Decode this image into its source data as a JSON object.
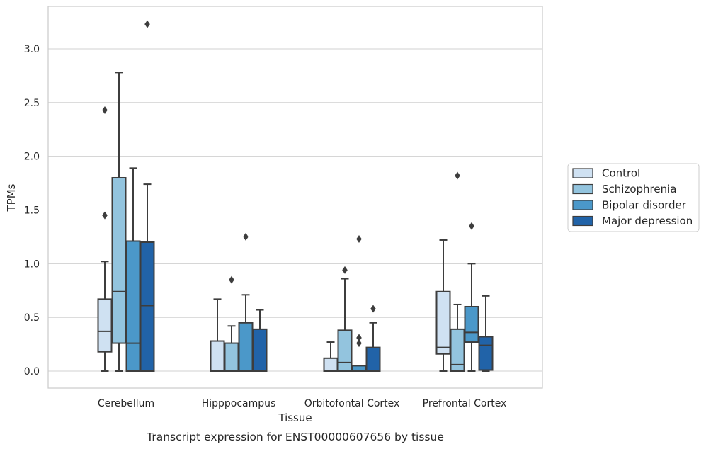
{
  "chart_data": {
    "type": "boxplot",
    "title": "",
    "caption": "Transcript expression for ENST00000607656 by tissue",
    "xlabel": "Tissue",
    "ylabel": "TPMs",
    "ylim": [
      -0.16,
      3.4
    ],
    "yticks": [
      0.0,
      0.5,
      1.0,
      1.5,
      2.0,
      2.5,
      3.0
    ],
    "ytick_labels": [
      "0.0",
      "0.5",
      "1.0",
      "1.5",
      "2.0",
      "2.5",
      "3.0"
    ],
    "grid": true,
    "legend_position": "right",
    "categories": [
      "Cerebellum",
      "Hipppocampus",
      "Orbitofontal Cortex",
      "Prefrontal Cortex"
    ],
    "series": [
      {
        "name": "Control",
        "color": "#cfe1f2",
        "boxes": [
          {
            "whislo": 0.0,
            "q1": 0.18,
            "med": 0.37,
            "q3": 0.67,
            "whishi": 1.02,
            "fliers": [
              1.45,
              2.43
            ]
          },
          {
            "whislo": 0.0,
            "q1": 0.0,
            "med": 0.0,
            "q3": 0.28,
            "whishi": 0.67,
            "fliers": []
          },
          {
            "whislo": 0.0,
            "q1": 0.0,
            "med": 0.0,
            "q3": 0.12,
            "whishi": 0.27,
            "fliers": []
          },
          {
            "whislo": 0.0,
            "q1": 0.16,
            "med": 0.22,
            "q3": 0.74,
            "whishi": 1.22,
            "fliers": []
          }
        ]
      },
      {
        "name": "Schizophrenia",
        "color": "#93c4de",
        "boxes": [
          {
            "whislo": 0.0,
            "q1": 0.26,
            "med": 0.74,
            "q3": 1.8,
            "whishi": 2.78,
            "fliers": []
          },
          {
            "whislo": 0.0,
            "q1": 0.0,
            "med": 0.0,
            "q3": 0.26,
            "whishi": 0.42,
            "fliers": [
              0.85
            ]
          },
          {
            "whislo": 0.0,
            "q1": 0.0,
            "med": 0.08,
            "q3": 0.38,
            "whishi": 0.86,
            "fliers": [
              0.94
            ]
          },
          {
            "whislo": 0.0,
            "q1": 0.0,
            "med": 0.06,
            "q3": 0.39,
            "whishi": 0.62,
            "fliers": [
              1.82
            ]
          }
        ]
      },
      {
        "name": "Bipolar disorder",
        "color": "#4b98c9",
        "boxes": [
          {
            "whislo": 0.0,
            "q1": 0.0,
            "med": 0.26,
            "q3": 1.21,
            "whishi": 1.89,
            "fliers": []
          },
          {
            "whislo": 0.0,
            "q1": 0.0,
            "med": 0.0,
            "q3": 0.45,
            "whishi": 0.71,
            "fliers": [
              1.25
            ]
          },
          {
            "whislo": 0.0,
            "q1": 0.0,
            "med": 0.0,
            "q3": 0.05,
            "whishi": 0.05,
            "fliers": [
              0.26,
              0.31,
              1.23
            ]
          },
          {
            "whislo": 0.0,
            "q1": 0.27,
            "med": 0.36,
            "q3": 0.6,
            "whishi": 1.0,
            "fliers": [
              1.35
            ]
          }
        ]
      },
      {
        "name": "Major depression",
        "color": "#2163a8",
        "boxes": [
          {
            "whislo": 0.0,
            "q1": 0.0,
            "med": 0.61,
            "q3": 1.2,
            "whishi": 1.74,
            "fliers": [
              3.23
            ]
          },
          {
            "whislo": 0.0,
            "q1": 0.0,
            "med": 0.0,
            "q3": 0.39,
            "whishi": 0.57,
            "fliers": []
          },
          {
            "whislo": 0.0,
            "q1": 0.0,
            "med": 0.0,
            "q3": 0.22,
            "whishi": 0.45,
            "fliers": [
              0.58
            ]
          },
          {
            "whislo": 0.0,
            "q1": 0.01,
            "med": 0.24,
            "q3": 0.32,
            "whishi": 0.7,
            "fliers": []
          }
        ]
      }
    ]
  }
}
